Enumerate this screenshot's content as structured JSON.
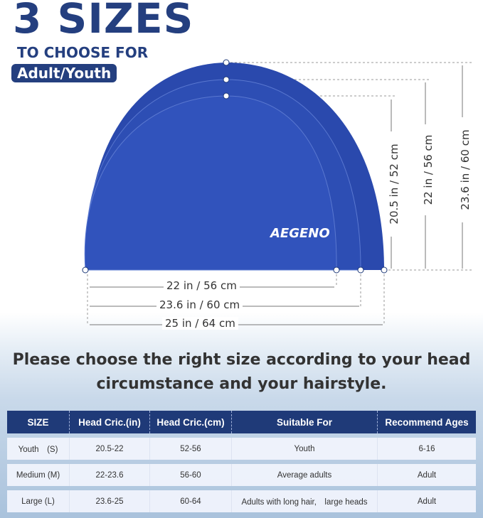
{
  "heading": {
    "title": "3 SIZES",
    "subtitle": "TO CHOOSE FOR",
    "badge": "Adult/Youth"
  },
  "brand_logo": "AEGENO",
  "cap_color": "#2f51b9",
  "dimensions": {
    "heights": [
      "20.5 in / 52 cm",
      "22 in / 56 cm",
      "23.6 in / 60 cm"
    ],
    "widths": [
      "22 in / 56 cm",
      "23.6 in / 60 cm",
      "25 in / 64 cm"
    ]
  },
  "note": {
    "line1": "Please choose the right size according to your head",
    "line2": "circumstance and your hairstyle."
  },
  "table": {
    "headers": [
      "SIZE",
      "Head Cric.(in)",
      "Head Cric.(cm)",
      "Suitable For",
      "Recommend Ages"
    ],
    "rows": [
      [
        "Youth　(S)",
        "20.5-22",
        "52-56",
        "Youth",
        "6-16"
      ],
      [
        "Medium (M)",
        "22-23.6",
        "56-60",
        "Average adults",
        "Adult"
      ],
      [
        "Large (L)",
        "23.6-25",
        "60-64",
        "Adults with long hair,　large heads",
        "Adult"
      ]
    ]
  }
}
